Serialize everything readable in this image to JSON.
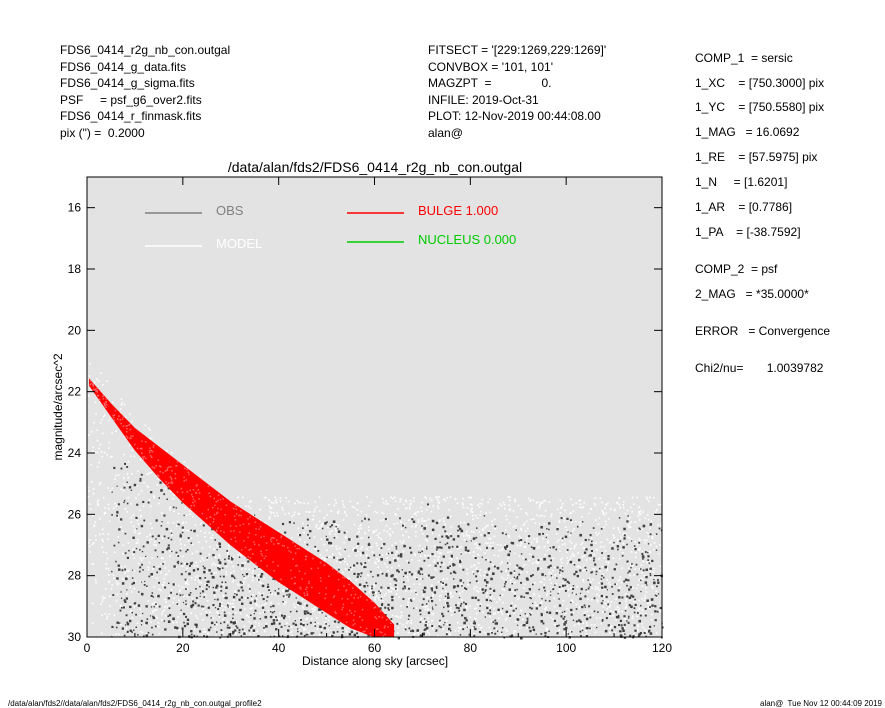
{
  "header_left": [
    "FDS6_0414_r2g_nb_con.outgal",
    "FDS6_0414_g_data.fits",
    "FDS6_0414_g_sigma.fits",
    "PSF     = psf_g6_over2.fits",
    "FDS6_0414_r_finmask.fits",
    "pix (\") =  0.2000"
  ],
  "header_mid": [
    "FITSECT = '[229:1269,229:1269]'",
    "CONVBOX = '101, 101'",
    "MAGZPT  =               0.",
    "INFILE: 2019-Oct-31",
    "PLOT: 12-Nov-2019 00:44:08.00",
    "alan@"
  ],
  "params": [
    "COMP_1  = sersic",
    "1_XC    = [750.3000] pix",
    "1_YC    = [750.5580] pix",
    "1_MAG   = 16.0692",
    "1_RE    = [57.5975] pix",
    "1_N     = [1.6201]",
    "1_AR    = [0.7786]",
    "1_PA    = [-38.7592]",
    "COMP_2  = psf",
    "2_MAG   = *35.0000*",
    "ERROR   = Convergence",
    "Chi2/nu=       1.0039782"
  ],
  "footer_left": "/data/alan/fds2//data/alan/fds2/FDS6_0414_r2g_nb_con.outgal_profile2",
  "footer_right": "alan@  Tue Nov 12 00:44:09 2019",
  "colors": {
    "plot_bg": "#e3e3e3",
    "obs": "#808080",
    "model": "#ffffff",
    "bulge": "#ff0000",
    "nucleus": "#00cc00",
    "dark_points": "#404040"
  },
  "chart_data": {
    "type": "scatter",
    "title": "/data/alan/fds2/FDS6_0414_r2g_nb_con.outgal",
    "xlabel": "Distance along sky [arcsec]",
    "ylabel": "magnitude/arcsec^2",
    "xlim": [
      0,
      120
    ],
    "ylim": [
      30,
      15
    ],
    "y_inverted": true,
    "xticks": [
      0,
      20,
      40,
      60,
      80,
      100,
      120
    ],
    "yticks": [
      16,
      18,
      20,
      22,
      24,
      26,
      28,
      30
    ],
    "grid": false,
    "legend": [
      {
        "label": "OBS",
        "color": "#808080"
      },
      {
        "label": "MODEL",
        "color": "#ffffff"
      },
      {
        "label": "BULGE  1.000",
        "color": "#ff0000"
      },
      {
        "label": "NUCLEUS  0.000",
        "color": "#00cc00"
      }
    ],
    "series": [
      {
        "name": "BULGE  1.000",
        "kind": "band",
        "x": [
          0.5,
          5,
          10,
          15,
          20,
          25,
          30,
          35,
          40,
          45,
          50,
          55,
          60,
          64
        ],
        "y_upper": [
          21.6,
          22.4,
          23.2,
          23.8,
          24.4,
          25.0,
          25.6,
          26.1,
          26.6,
          27.1,
          27.6,
          28.2,
          28.9,
          29.6
        ],
        "y_lower": [
          21.8,
          22.8,
          23.9,
          24.8,
          25.6,
          26.3,
          27.0,
          27.6,
          28.2,
          28.7,
          29.2,
          29.7,
          30.0,
          30.0
        ]
      },
      {
        "name": "MODEL",
        "kind": "scatter-envelope",
        "x_range": [
          0,
          120
        ],
        "sky_level": 25.4,
        "y_max": 30
      },
      {
        "name": "OBS",
        "kind": "scatter-envelope",
        "x_range": [
          5,
          120
        ],
        "sky_level": 25.4,
        "y_max": 30
      }
    ]
  }
}
